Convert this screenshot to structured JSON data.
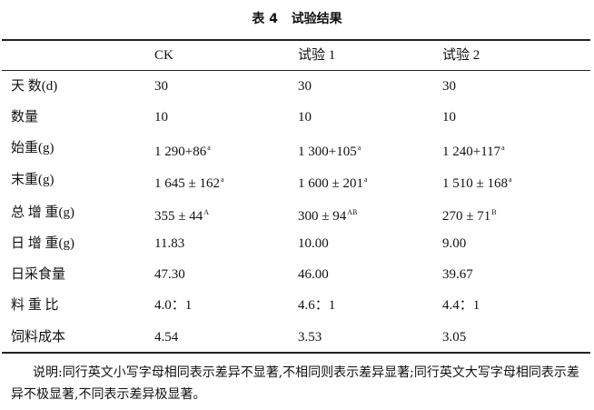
{
  "header": {
    "title": "表 4   试验结果"
  },
  "table": {
    "columns": [
      "CK",
      "试验 1",
      "试验 2"
    ],
    "rows": [
      {
        "label": "天 数(d)",
        "cells": [
          "30",
          "30",
          "30"
        ]
      },
      {
        "label": "数量",
        "cells": [
          "10",
          "10",
          "10"
        ]
      },
      {
        "label": "始重(g)",
        "cells": [
          {
            "text": "1 290+86",
            "sup": "a"
          },
          {
            "text": "1 300+105",
            "sup": "a"
          },
          {
            "text": "1 240+117",
            "sup": "a"
          }
        ]
      },
      {
        "label": "末重(g)",
        "cells": [
          {
            "text": "1 645 ± 162",
            "sup": "a"
          },
          {
            "text": "1 600 ± 201",
            "sup": "a"
          },
          {
            "text": "1 510 ± 168",
            "sup": "a"
          }
        ]
      },
      {
        "label": "总 增 重(g)",
        "cells": [
          {
            "text": "355 ± 44",
            "sup": "A"
          },
          {
            "text": "300 ± 94",
            "sup": "AB"
          },
          {
            "text": "270 ± 71",
            "sup": "B"
          }
        ]
      },
      {
        "label": "日 增 重(g)",
        "cells": [
          "11.83",
          "10.00",
          "9.00"
        ]
      },
      {
        "label": "日采食量",
        "cells": [
          "47.30",
          "46.00",
          "39.67"
        ]
      },
      {
        "label": "料 重 比",
        "cells": [
          "4.0：1",
          "4.6：1",
          "4.4：1"
        ]
      },
      {
        "label": "饲料成本",
        "cells": [
          "4.54",
          "3.53",
          "3.05"
        ]
      }
    ]
  },
  "note": "说明:同行英文小写字母相同表示差异不显著,不相同则表示差异显著;同行英文大写字母相同表示差异不极显著,不同表示差异极显著。"
}
